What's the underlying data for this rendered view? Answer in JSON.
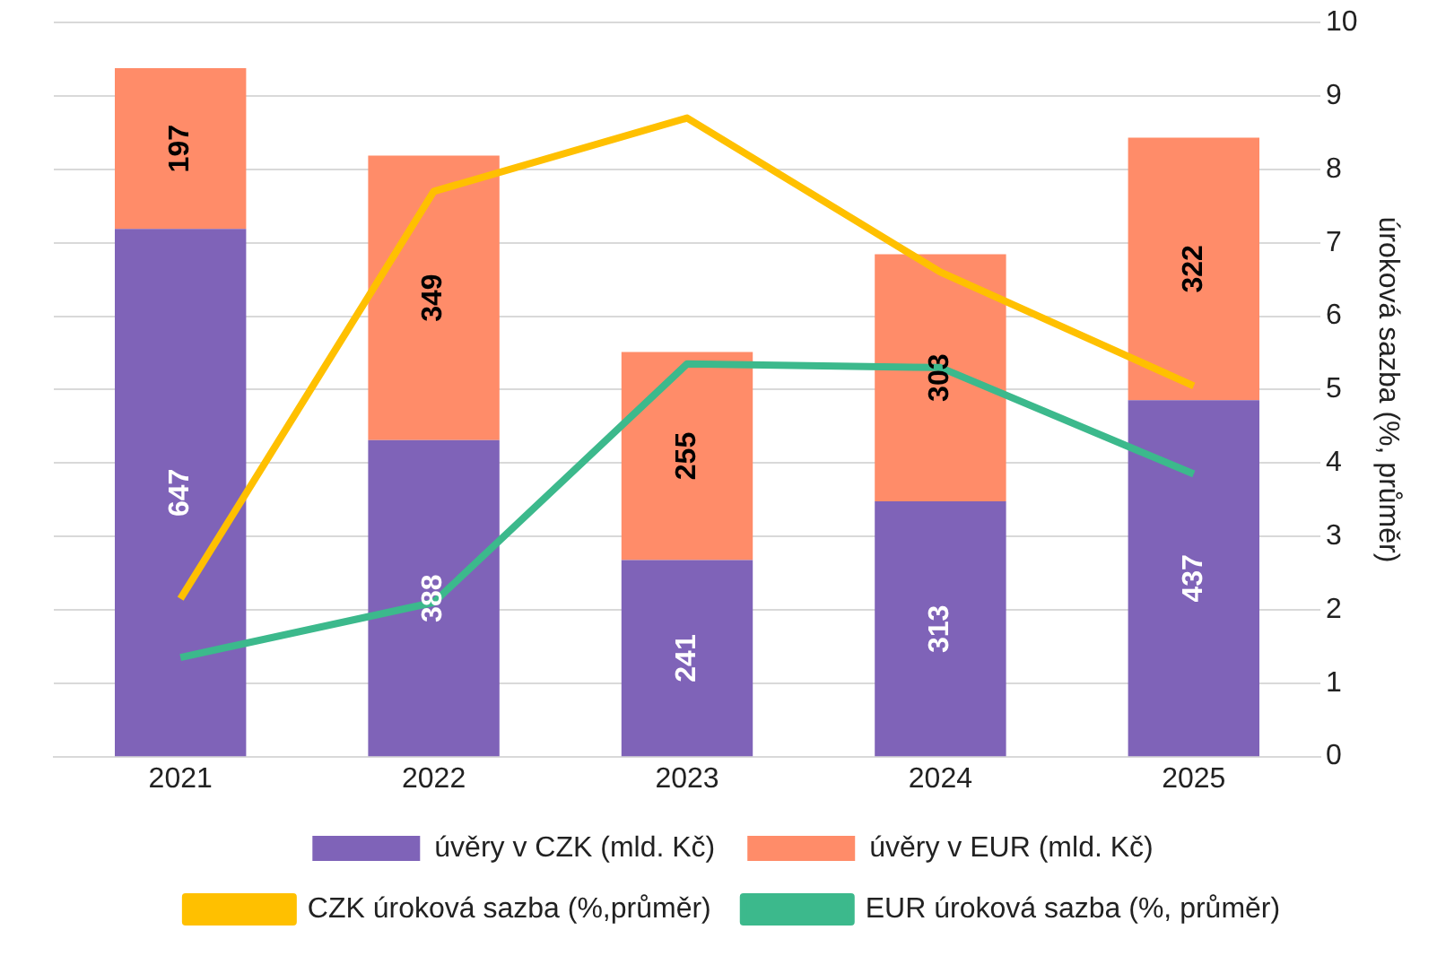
{
  "chart_data": {
    "type": "bar",
    "stacked": true,
    "categories": [
      "2021",
      "2022",
      "2023",
      "2024",
      "2025"
    ],
    "series": [
      {
        "name": "úvěry v CZK (mld. Kč)",
        "color": "#7f63b8",
        "values": [
          647,
          388,
          241,
          313,
          437
        ],
        "value_labels": [
          "647",
          "388",
          "241",
          "313",
          "437"
        ]
      },
      {
        "name": "úvěry v EUR (mld. Kč)",
        "color": "#ff8c69",
        "values": [
          197,
          349,
          255,
          303,
          322
        ],
        "value_labels": [
          "197",
          "349",
          "255",
          "303",
          "322"
        ]
      },
      {
        "name": "CZK úroková sazba (%,průměr)",
        "type": "line",
        "axis": "y2",
        "color": "#ffc000",
        "values": [
          2.15,
          7.7,
          8.7,
          6.6,
          5.05
        ]
      },
      {
        "name": "EUR úroková sazba (%, průměr)",
        "type": "line",
        "axis": "y2",
        "color": "#3cb98c",
        "values": [
          1.35,
          2.1,
          5.35,
          5.3,
          3.85
        ]
      }
    ],
    "ylim": [
      0,
      900
    ],
    "y2label": "úroková sazba (%, průměr)",
    "y2lim": [
      0,
      10
    ],
    "y2ticks": [
      0,
      1,
      2,
      3,
      4,
      5,
      6,
      7,
      8,
      9,
      10
    ],
    "grid": "y2",
    "legend": "bottom",
    "marker": "none"
  }
}
